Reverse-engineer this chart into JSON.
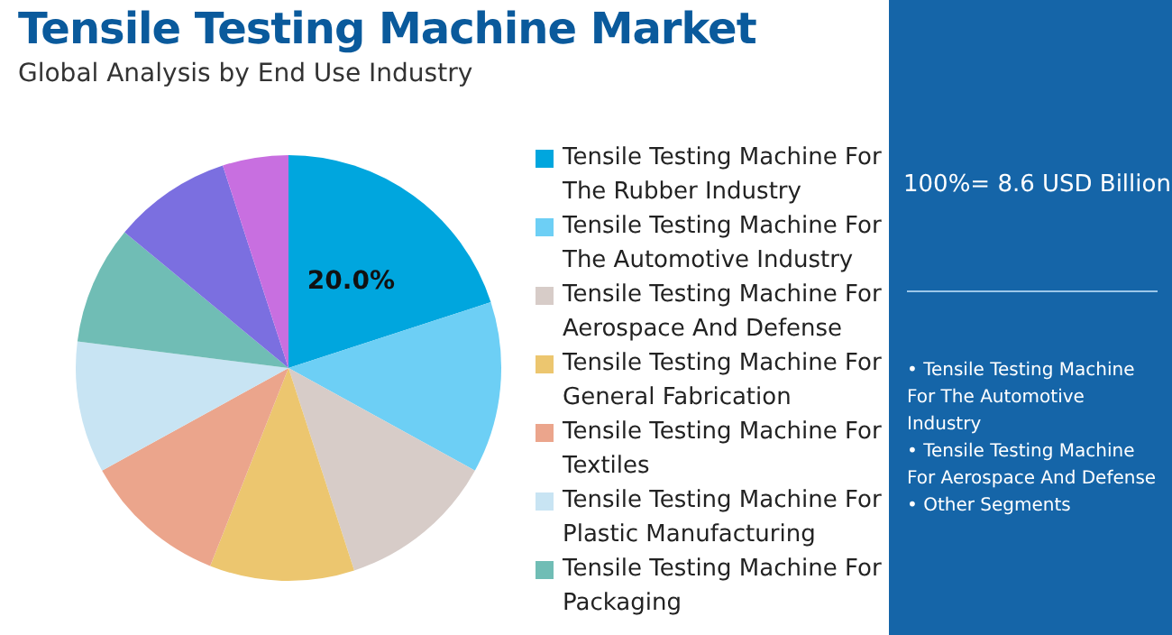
{
  "chart_data": {
    "type": "pie",
    "title": "Tensile Testing Machine Market",
    "subtitle": "Global Analysis by End Use Industry",
    "categories": [
      "Tensile Testing Machine For The Rubber Industry",
      "Tensile Testing Machine For The Automotive Industry",
      "Tensile Testing Machine For Aerospace And Defense",
      "Tensile Testing Machine For General Fabrication",
      "Tensile Testing Machine For Textiles",
      "Tensile Testing Machine For Plastic Manufacturing",
      "Tensile Testing Machine For Packaging",
      null,
      null
    ],
    "values": [
      20,
      13,
      12,
      11,
      11,
      10,
      9,
      9,
      5
    ],
    "value_labels": [
      "20.0%",
      null,
      null,
      null,
      null,
      null,
      null,
      null,
      null
    ],
    "colors": [
      "#00a6de",
      "#6dcff5",
      "#d7ccc8",
      "#ecc66f",
      "#eba58c",
      "#c8e4f3",
      "#70bdb5",
      "#7b6fe0",
      "#c86fe0"
    ],
    "legend": "right",
    "annotations": [
      "100%= 8.6 USD Billion",
      "• Tensile Testing Machine For The Automotive Industry",
      "• Tensile Testing Machine For Aerospace And Defense",
      "• Other Segments"
    ]
  }
}
